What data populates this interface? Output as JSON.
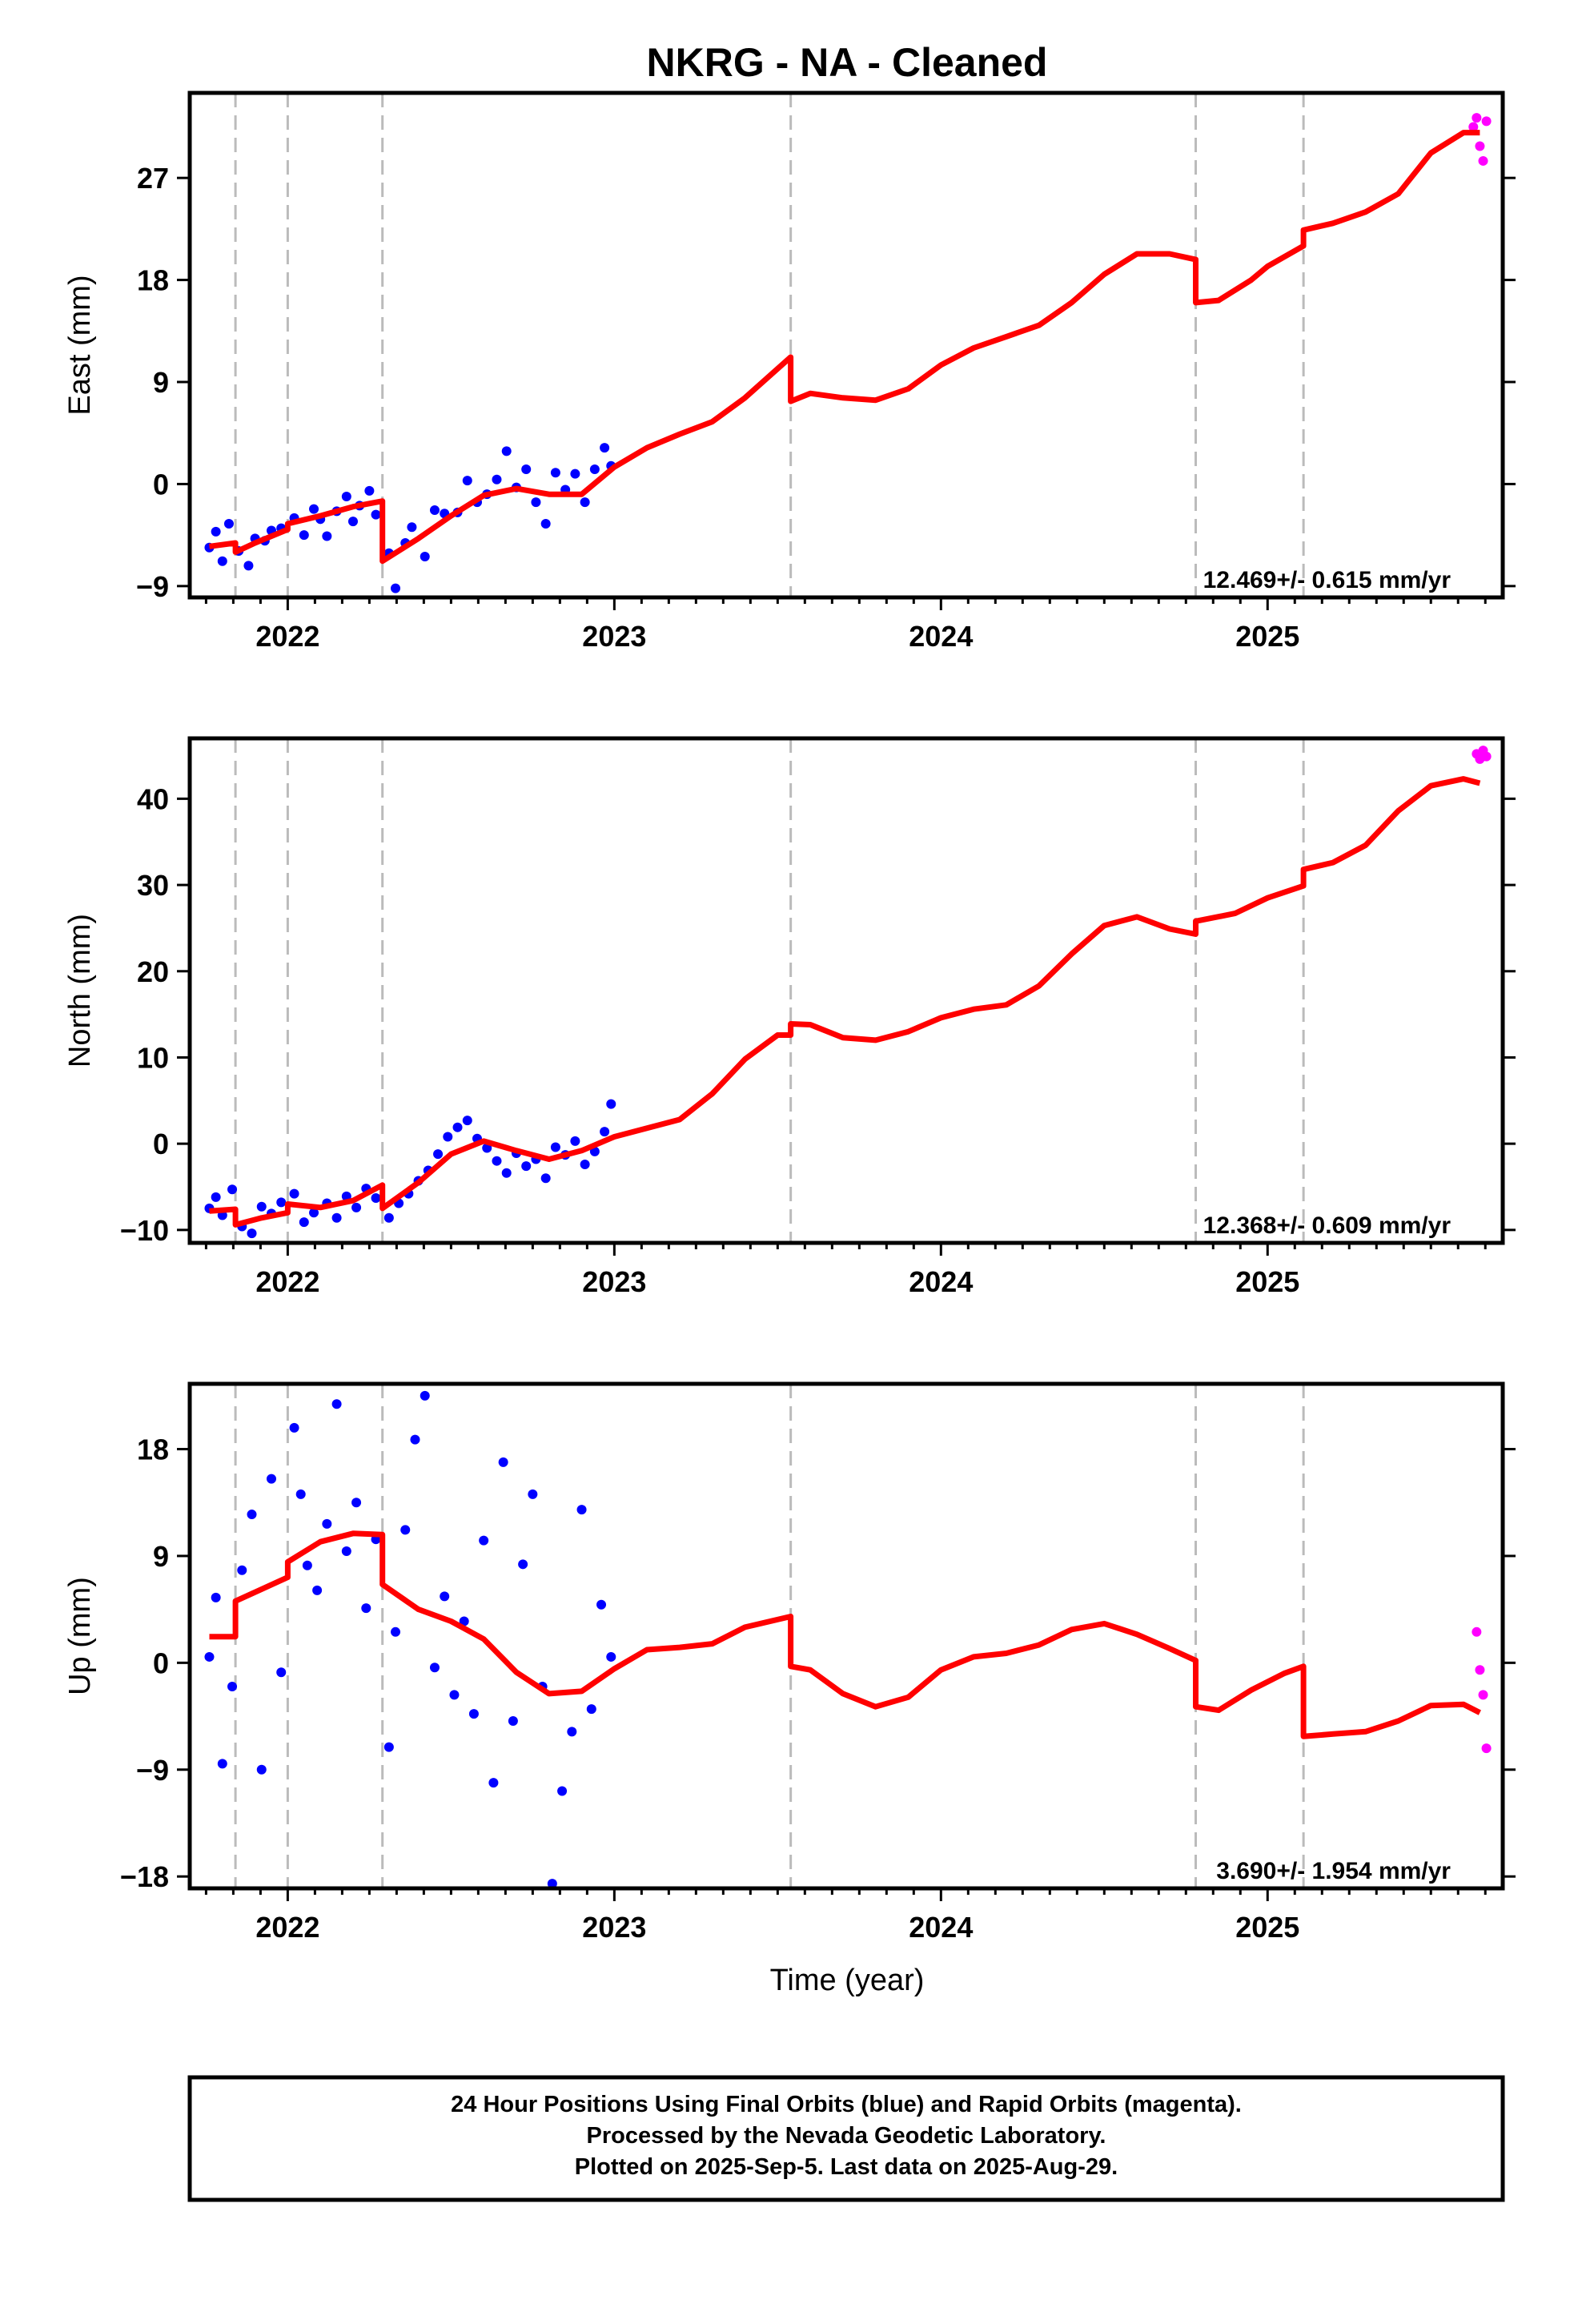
{
  "title": "NKRG  - NA - Cleaned",
  "x_axis_label": "Time (year)",
  "footer": {
    "line1": "24 Hour Positions Using Final Orbits (blue) and Rapid Orbits (magenta).",
    "line2": "Processed by the Nevada Geodetic Laboratory.",
    "line3": "Plotted on 2025-Sep-5. Last data on 2025-Aug-29."
  },
  "colors": {
    "final": "#0000ff",
    "rapid": "#ff00ff",
    "model": "#ff0000",
    "breaks": "#bbbbbb"
  },
  "chart_data": [
    {
      "type": "scatter",
      "component": "East",
      "ylabel": "East (mm)",
      "xlim": [
        2021.7,
        2025.72
      ],
      "ylim": [
        -10,
        34.5
      ],
      "yticks": [
        -9,
        0,
        9,
        18,
        27
      ],
      "xticks": [
        2022,
        2023,
        2024,
        2025
      ],
      "rate": "12.469+/- 0.615 mm/yr",
      "breaks": [
        2021.84,
        2022.0,
        2022.29,
        2023.54,
        2024.78,
        2025.11
      ],
      "model": [
        [
          2021.76,
          -5.5
        ],
        [
          2021.84,
          -5.2
        ],
        [
          2021.84,
          -6.0
        ],
        [
          2021.9,
          -5.2
        ],
        [
          2022.0,
          -4.0
        ],
        [
          2022.0,
          -3.5
        ],
        [
          2022.1,
          -2.8
        ],
        [
          2022.2,
          -2.0
        ],
        [
          2022.29,
          -1.5
        ],
        [
          2022.29,
          -6.8
        ],
        [
          2022.4,
          -4.8
        ],
        [
          2022.5,
          -2.8
        ],
        [
          2022.6,
          -1.0
        ],
        [
          2022.7,
          -0.4
        ],
        [
          2022.8,
          -0.9
        ],
        [
          2022.9,
          -0.9
        ],
        [
          2023.0,
          1.5
        ],
        [
          2023.1,
          3.2
        ],
        [
          2023.2,
          4.4
        ],
        [
          2023.3,
          5.5
        ],
        [
          2023.4,
          7.6
        ],
        [
          2023.54,
          11.2
        ],
        [
          2023.54,
          7.3
        ],
        [
          2023.6,
          8.0
        ],
        [
          2023.7,
          7.6
        ],
        [
          2023.8,
          7.4
        ],
        [
          2023.9,
          8.4
        ],
        [
          2024.0,
          10.5
        ],
        [
          2024.1,
          12.0
        ],
        [
          2024.2,
          13.0
        ],
        [
          2024.3,
          14.0
        ],
        [
          2024.4,
          16.0
        ],
        [
          2024.5,
          18.5
        ],
        [
          2024.6,
          20.3
        ],
        [
          2024.7,
          20.3
        ],
        [
          2024.78,
          19.8
        ],
        [
          2024.78,
          16.0
        ],
        [
          2024.85,
          16.2
        ],
        [
          2024.95,
          18.0
        ],
        [
          2025.0,
          19.2
        ],
        [
          2025.11,
          21.0
        ],
        [
          2025.11,
          22.4
        ],
        [
          2025.2,
          23.0
        ],
        [
          2025.3,
          24.0
        ],
        [
          2025.4,
          25.6
        ],
        [
          2025.5,
          29.2
        ],
        [
          2025.6,
          31.0
        ],
        [
          2025.65,
          31.0
        ]
      ],
      "final": [
        [
          2021.76,
          -5.6
        ],
        [
          2021.78,
          -4.2
        ],
        [
          2021.8,
          -6.8
        ],
        [
          2021.82,
          -3.5
        ],
        [
          2021.85,
          -5.9
        ],
        [
          2021.88,
          -7.2
        ],
        [
          2021.9,
          -4.8
        ],
        [
          2021.93,
          -5.0
        ],
        [
          2021.95,
          -4.1
        ],
        [
          2021.98,
          -3.9
        ],
        [
          2022.02,
          -3.0
        ],
        [
          2022.05,
          -4.5
        ],
        [
          2022.08,
          -2.2
        ],
        [
          2022.1,
          -3.1
        ],
        [
          2022.12,
          -4.6
        ],
        [
          2022.15,
          -2.4
        ],
        [
          2022.18,
          -1.1
        ],
        [
          2022.2,
          -3.3
        ],
        [
          2022.22,
          -1.9
        ],
        [
          2022.25,
          -0.6
        ],
        [
          2022.27,
          -2.7
        ],
        [
          2022.31,
          -6.1
        ],
        [
          2022.33,
          -9.2
        ],
        [
          2022.36,
          -5.2
        ],
        [
          2022.38,
          -3.8
        ],
        [
          2022.42,
          -6.4
        ],
        [
          2022.45,
          -2.3
        ],
        [
          2022.48,
          -2.6
        ],
        [
          2022.52,
          -2.5
        ],
        [
          2022.55,
          0.3
        ],
        [
          2022.58,
          -1.6
        ],
        [
          2022.61,
          -0.9
        ],
        [
          2022.64,
          0.4
        ],
        [
          2022.67,
          2.9
        ],
        [
          2022.7,
          -0.3
        ],
        [
          2022.73,
          1.3
        ],
        [
          2022.76,
          -1.6
        ],
        [
          2022.79,
          -3.5
        ],
        [
          2022.82,
          1.0
        ],
        [
          2022.85,
          -0.5
        ],
        [
          2022.88,
          0.9
        ],
        [
          2022.91,
          -1.6
        ],
        [
          2022.94,
          1.3
        ],
        [
          2022.97,
          3.2
        ],
        [
          2022.99,
          1.6
        ]
      ],
      "rapid": [
        [
          2025.63,
          31.5
        ],
        [
          2025.64,
          32.3
        ],
        [
          2025.65,
          29.8
        ],
        [
          2025.66,
          28.5
        ],
        [
          2025.67,
          32.0
        ]
      ]
    },
    {
      "type": "scatter",
      "component": "North",
      "ylabel": "North (mm)",
      "xlim": [
        2021.7,
        2025.72
      ],
      "ylim": [
        -11.5,
        47
      ],
      "yticks": [
        -10,
        0,
        10,
        20,
        30,
        40
      ],
      "xticks": [
        2022,
        2023,
        2024,
        2025
      ],
      "rate": "12.368+/- 0.609 mm/yr",
      "breaks": [
        2021.84,
        2022.0,
        2022.29,
        2023.54,
        2024.78,
        2025.11
      ],
      "model": [
        [
          2021.76,
          -7.8
        ],
        [
          2021.84,
          -7.6
        ],
        [
          2021.84,
          -9.4
        ],
        [
          2021.92,
          -8.6
        ],
        [
          2022.0,
          -8.0
        ],
        [
          2022.0,
          -7.0
        ],
        [
          2022.1,
          -7.4
        ],
        [
          2022.2,
          -6.6
        ],
        [
          2022.29,
          -4.8
        ],
        [
          2022.29,
          -7.5
        ],
        [
          2022.4,
          -4.5
        ],
        [
          2022.5,
          -1.2
        ],
        [
          2022.6,
          0.3
        ],
        [
          2022.7,
          -0.8
        ],
        [
          2022.8,
          -1.8
        ],
        [
          2022.9,
          -0.8
        ],
        [
          2023.0,
          0.8
        ],
        [
          2023.1,
          1.8
        ],
        [
          2023.2,
          2.8
        ],
        [
          2023.3,
          5.8
        ],
        [
          2023.4,
          9.8
        ],
        [
          2023.5,
          12.6
        ],
        [
          2023.54,
          12.6
        ],
        [
          2023.54,
          13.9
        ],
        [
          2023.6,
          13.8
        ],
        [
          2023.7,
          12.3
        ],
        [
          2023.8,
          12.0
        ],
        [
          2023.9,
          13.0
        ],
        [
          2024.0,
          14.6
        ],
        [
          2024.1,
          15.6
        ],
        [
          2024.2,
          16.1
        ],
        [
          2024.3,
          18.3
        ],
        [
          2024.4,
          22.0
        ],
        [
          2024.5,
          25.3
        ],
        [
          2024.6,
          26.3
        ],
        [
          2024.7,
          24.9
        ],
        [
          2024.78,
          24.3
        ],
        [
          2024.78,
          25.8
        ],
        [
          2024.9,
          26.7
        ],
        [
          2025.0,
          28.5
        ],
        [
          2025.11,
          29.9
        ],
        [
          2025.11,
          31.8
        ],
        [
          2025.2,
          32.6
        ],
        [
          2025.3,
          34.6
        ],
        [
          2025.4,
          38.6
        ],
        [
          2025.5,
          41.5
        ],
        [
          2025.6,
          42.3
        ],
        [
          2025.65,
          41.8
        ]
      ],
      "final": [
        [
          2021.76,
          -7.5
        ],
        [
          2021.78,
          -6.2
        ],
        [
          2021.8,
          -8.3
        ],
        [
          2021.83,
          -5.3
        ],
        [
          2021.86,
          -9.6
        ],
        [
          2021.89,
          -10.4
        ],
        [
          2021.92,
          -7.3
        ],
        [
          2021.95,
          -8.1
        ],
        [
          2021.98,
          -6.8
        ],
        [
          2022.02,
          -5.8
        ],
        [
          2022.05,
          -9.1
        ],
        [
          2022.08,
          -8.0
        ],
        [
          2022.12,
          -6.9
        ],
        [
          2022.15,
          -8.6
        ],
        [
          2022.18,
          -6.1
        ],
        [
          2022.21,
          -7.4
        ],
        [
          2022.24,
          -5.2
        ],
        [
          2022.27,
          -6.3
        ],
        [
          2022.31,
          -8.6
        ],
        [
          2022.34,
          -6.9
        ],
        [
          2022.37,
          -5.8
        ],
        [
          2022.4,
          -4.3
        ],
        [
          2022.43,
          -3.1
        ],
        [
          2022.46,
          -1.2
        ],
        [
          2022.49,
          0.8
        ],
        [
          2022.52,
          1.9
        ],
        [
          2022.55,
          2.7
        ],
        [
          2022.58,
          0.6
        ],
        [
          2022.61,
          -0.5
        ],
        [
          2022.64,
          -2.0
        ],
        [
          2022.67,
          -3.4
        ],
        [
          2022.7,
          -1.1
        ],
        [
          2022.73,
          -2.6
        ],
        [
          2022.76,
          -1.8
        ],
        [
          2022.79,
          -4.0
        ],
        [
          2022.82,
          -0.4
        ],
        [
          2022.85,
          -1.3
        ],
        [
          2022.88,
          0.3
        ],
        [
          2022.91,
          -2.4
        ],
        [
          2022.94,
          -0.9
        ],
        [
          2022.97,
          1.4
        ],
        [
          2022.99,
          4.6
        ]
      ],
      "rapid": [
        [
          2025.64,
          45.2
        ],
        [
          2025.65,
          44.6
        ],
        [
          2025.66,
          45.6
        ],
        [
          2025.67,
          44.9
        ]
      ]
    },
    {
      "type": "scatter",
      "component": "Up",
      "ylabel": "Up (mm)",
      "xlim": [
        2021.7,
        2025.72
      ],
      "ylim": [
        -19,
        23.5
      ],
      "yticks": [
        -18,
        -9,
        0,
        9,
        18
      ],
      "xticks": [
        2022,
        2023,
        2024,
        2025
      ],
      "rate": "3.690+/- 1.954 mm/yr",
      "breaks": [
        2021.84,
        2022.0,
        2022.29,
        2023.54,
        2024.78,
        2025.11
      ],
      "model": [
        [
          2021.76,
          2.2
        ],
        [
          2021.84,
          2.2
        ],
        [
          2021.84,
          5.2
        ],
        [
          2021.92,
          6.2
        ],
        [
          2022.0,
          7.2
        ],
        [
          2022.0,
          8.5
        ],
        [
          2022.1,
          10.2
        ],
        [
          2022.2,
          10.9
        ],
        [
          2022.29,
          10.8
        ],
        [
          2022.29,
          6.6
        ],
        [
          2022.4,
          4.5
        ],
        [
          2022.5,
          3.5
        ],
        [
          2022.6,
          2.0
        ],
        [
          2022.7,
          -0.8
        ],
        [
          2022.8,
          -2.6
        ],
        [
          2022.9,
          -2.4
        ],
        [
          2023.0,
          -0.5
        ],
        [
          2023.1,
          1.1
        ],
        [
          2023.2,
          1.3
        ],
        [
          2023.3,
          1.6
        ],
        [
          2023.4,
          3.0
        ],
        [
          2023.54,
          3.9
        ],
        [
          2023.54,
          -0.3
        ],
        [
          2023.6,
          -0.6
        ],
        [
          2023.7,
          -2.6
        ],
        [
          2023.8,
          -3.7
        ],
        [
          2023.9,
          -2.9
        ],
        [
          2024.0,
          -0.6
        ],
        [
          2024.1,
          0.5
        ],
        [
          2024.2,
          0.8
        ],
        [
          2024.3,
          1.5
        ],
        [
          2024.4,
          2.8
        ],
        [
          2024.5,
          3.3
        ],
        [
          2024.6,
          2.4
        ],
        [
          2024.7,
          1.2
        ],
        [
          2024.78,
          0.2
        ],
        [
          2024.78,
          -3.7
        ],
        [
          2024.85,
          -4.0
        ],
        [
          2024.95,
          -2.3
        ],
        [
          2025.05,
          -0.9
        ],
        [
          2025.11,
          -0.3
        ],
        [
          2025.11,
          -6.2
        ],
        [
          2025.2,
          -6.0
        ],
        [
          2025.3,
          -5.8
        ],
        [
          2025.4,
          -4.9
        ],
        [
          2025.5,
          -3.6
        ],
        [
          2025.6,
          -3.5
        ],
        [
          2025.65,
          -4.2
        ]
      ],
      "final": [
        [
          2021.76,
          0.5
        ],
        [
          2021.78,
          5.5
        ],
        [
          2021.8,
          -8.5
        ],
        [
          2021.83,
          -2.0
        ],
        [
          2021.86,
          7.8
        ],
        [
          2021.89,
          12.5
        ],
        [
          2021.92,
          -9.0
        ],
        [
          2021.95,
          15.5
        ],
        [
          2021.98,
          -0.8
        ],
        [
          2022.02,
          19.8
        ],
        [
          2022.04,
          14.2
        ],
        [
          2022.06,
          8.2
        ],
        [
          2022.09,
          6.1
        ],
        [
          2022.12,
          11.7
        ],
        [
          2022.15,
          21.8
        ],
        [
          2022.18,
          9.4
        ],
        [
          2022.21,
          13.5
        ],
        [
          2022.24,
          4.6
        ],
        [
          2022.27,
          10.4
        ],
        [
          2022.31,
          -7.1
        ],
        [
          2022.33,
          2.6
        ],
        [
          2022.36,
          11.2
        ],
        [
          2022.39,
          18.8
        ],
        [
          2022.42,
          22.5
        ],
        [
          2022.45,
          -0.4
        ],
        [
          2022.48,
          5.6
        ],
        [
          2022.51,
          -2.7
        ],
        [
          2022.54,
          3.5
        ],
        [
          2022.57,
          -4.3
        ],
        [
          2022.6,
          10.3
        ],
        [
          2022.63,
          -10.1
        ],
        [
          2022.66,
          16.9
        ],
        [
          2022.69,
          -4.9
        ],
        [
          2022.72,
          8.3
        ],
        [
          2022.75,
          14.2
        ],
        [
          2022.78,
          -2.0
        ],
        [
          2022.81,
          -18.6
        ],
        [
          2022.84,
          -10.8
        ],
        [
          2022.87,
          -5.8
        ],
        [
          2022.9,
          12.9
        ],
        [
          2022.93,
          -3.9
        ],
        [
          2022.96,
          4.9
        ],
        [
          2022.99,
          0.5
        ]
      ],
      "rapid": [
        [
          2025.64,
          2.6
        ],
        [
          2025.65,
          -0.6
        ],
        [
          2025.66,
          -2.7
        ],
        [
          2025.67,
          -7.2
        ]
      ]
    }
  ]
}
